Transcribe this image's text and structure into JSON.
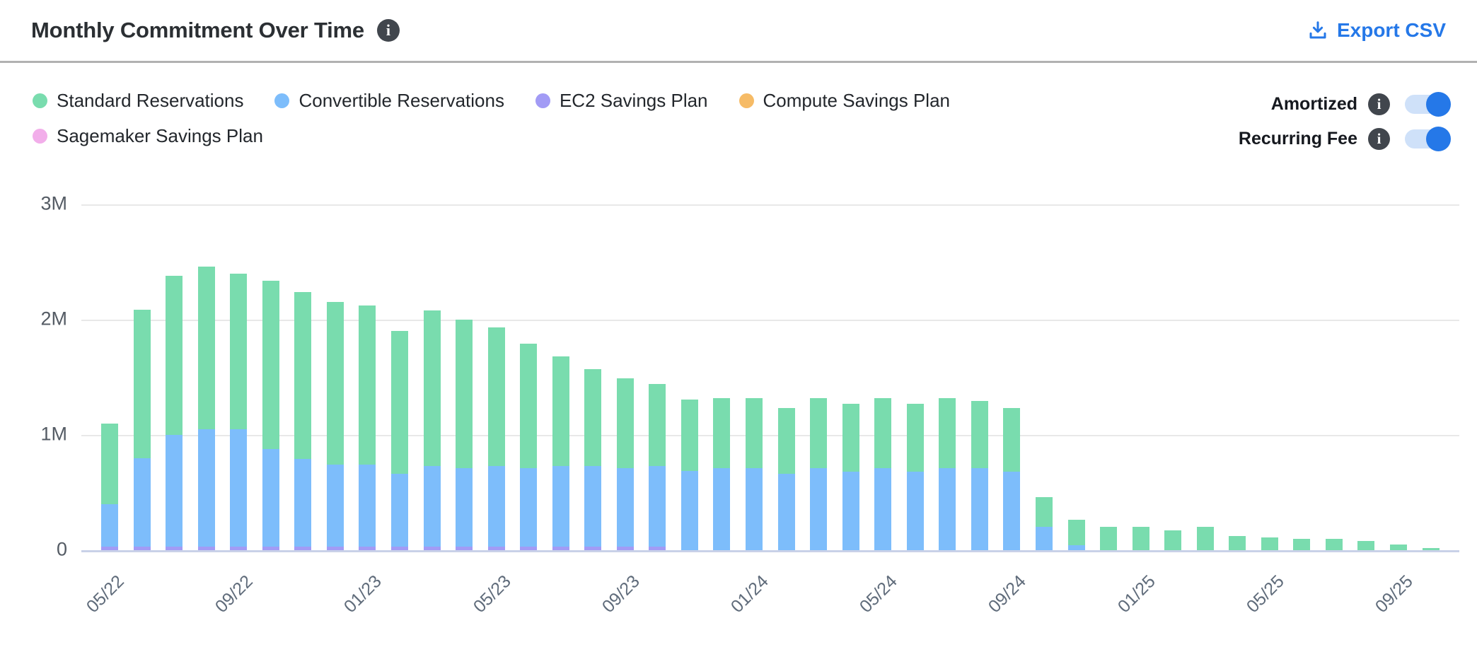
{
  "header": {
    "title": "Monthly Commitment Over Time",
    "export_label": "Export CSV"
  },
  "controls": {
    "toggles": [
      {
        "label": "Amortized",
        "enabled": true
      },
      {
        "label": "Recurring Fee",
        "enabled": true
      }
    ]
  },
  "colors": {
    "accent_blue": "#2578e8",
    "toggle_track": "#cfe1f9",
    "grid": "#e8e8e8",
    "baseline": "#c9d1e8",
    "axis_text": "#545b64",
    "title_text": "#2b2f33"
  },
  "chart_data": {
    "type": "bar",
    "stacked": true,
    "title": "Monthly Commitment Over Time",
    "value_unit": "millions",
    "ylim": [
      0,
      3
    ],
    "yticks": [
      {
        "label": "3M",
        "value": 3
      },
      {
        "label": "2M",
        "value": 2
      },
      {
        "label": "1M",
        "value": 1
      },
      {
        "label": "0",
        "value": 0
      }
    ],
    "x": [
      "05/22",
      "06/22",
      "07/22",
      "08/22",
      "09/22",
      "10/22",
      "11/22",
      "12/22",
      "01/23",
      "02/23",
      "03/23",
      "04/23",
      "05/23",
      "06/23",
      "07/23",
      "08/23",
      "09/23",
      "10/23",
      "11/23",
      "12/23",
      "01/24",
      "02/24",
      "03/24",
      "04/24",
      "05/24",
      "06/24",
      "07/24",
      "08/24",
      "09/24",
      "10/24",
      "11/24",
      "12/24",
      "01/25",
      "02/25",
      "03/25",
      "04/25",
      "05/25",
      "06/25",
      "07/25",
      "08/25",
      "09/25",
      "10/25"
    ],
    "x_tick_every": 4,
    "x_tick_labels": [
      "05/22",
      "09/22",
      "01/23",
      "05/23",
      "09/23",
      "01/24",
      "05/24",
      "09/24",
      "01/25",
      "05/25",
      "09/25"
    ],
    "legend_position": "top",
    "stack_order": [
      "EC2 Savings Plan",
      "Convertible Reservations",
      "Standard Reservations",
      "Compute Savings Plan",
      "Sagemaker Savings Plan"
    ],
    "series": [
      {
        "name": "Standard Reservations",
        "color": "#79dcae",
        "values": [
          0.7,
          1.29,
          1.38,
          1.41,
          1.35,
          1.46,
          1.45,
          1.41,
          1.38,
          1.24,
          1.35,
          1.29,
          1.2,
          1.08,
          0.95,
          0.84,
          0.78,
          0.71,
          0.62,
          0.61,
          0.61,
          0.57,
          0.61,
          0.59,
          0.61,
          0.59,
          0.61,
          0.58,
          0.55,
          0.26,
          0.22,
          0.2,
          0.2,
          0.17,
          0.2,
          0.12,
          0.11,
          0.1,
          0.1,
          0.08,
          0.05,
          0.02
        ]
      },
      {
        "name": "Convertible Reservations",
        "color": "#7dbdfb",
        "values": [
          0.37,
          0.77,
          0.97,
          1.02,
          1.02,
          0.85,
          0.76,
          0.71,
          0.71,
          0.63,
          0.7,
          0.68,
          0.7,
          0.68,
          0.7,
          0.7,
          0.68,
          0.7,
          0.69,
          0.71,
          0.71,
          0.66,
          0.71,
          0.68,
          0.71,
          0.68,
          0.71,
          0.71,
          0.68,
          0.2,
          0.04,
          0,
          0,
          0,
          0,
          0,
          0,
          0,
          0,
          0,
          0,
          0
        ]
      },
      {
        "name": "EC2 Savings Plan",
        "color": "#a29bf5",
        "values": [
          0.03,
          0.03,
          0.03,
          0.03,
          0.03,
          0.03,
          0.03,
          0.03,
          0.03,
          0.03,
          0.03,
          0.03,
          0.03,
          0.03,
          0.03,
          0.03,
          0.03,
          0.03,
          0,
          0,
          0,
          0,
          0,
          0,
          0,
          0,
          0,
          0,
          0,
          0,
          0,
          0,
          0,
          0,
          0,
          0,
          0,
          0,
          0,
          0,
          0,
          0
        ]
      },
      {
        "name": "Compute Savings Plan",
        "color": "#f6bb66",
        "values": [
          0,
          0,
          0,
          0,
          0,
          0,
          0,
          0,
          0,
          0,
          0,
          0,
          0,
          0,
          0,
          0,
          0,
          0,
          0,
          0,
          0,
          0,
          0,
          0,
          0,
          0,
          0,
          0,
          0,
          0,
          0,
          0,
          0,
          0,
          0,
          0,
          0,
          0,
          0,
          0,
          0,
          0
        ]
      },
      {
        "name": "Sagemaker Savings Plan",
        "color": "#f2aeea",
        "values": [
          0,
          0,
          0,
          0,
          0,
          0,
          0,
          0,
          0,
          0,
          0,
          0,
          0,
          0,
          0,
          0,
          0,
          0,
          0,
          0,
          0,
          0,
          0,
          0,
          0,
          0,
          0,
          0,
          0,
          0,
          0,
          0,
          0,
          0,
          0,
          0,
          0,
          0,
          0,
          0,
          0,
          0
        ]
      }
    ]
  }
}
